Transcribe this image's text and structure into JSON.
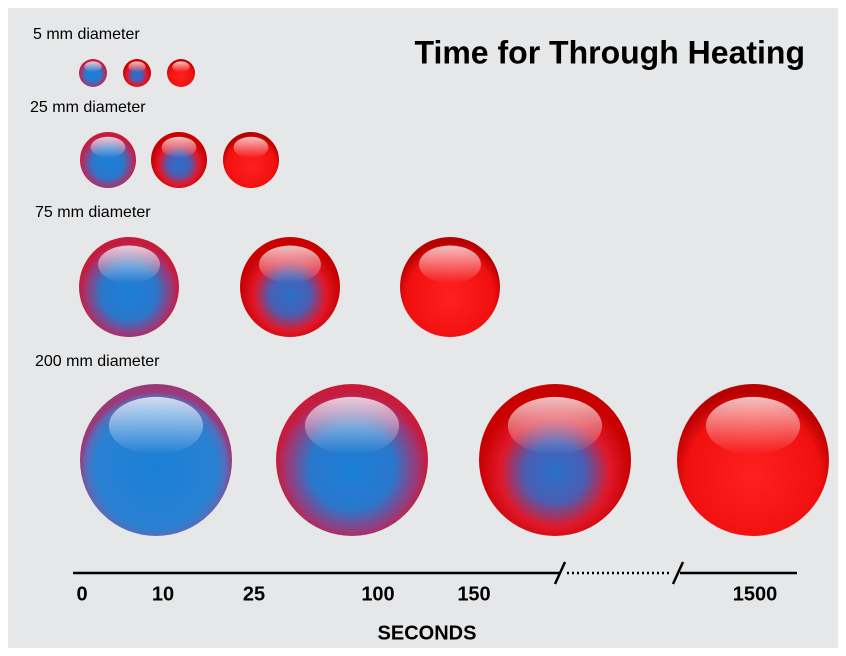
{
  "title": "Time for Through Heating",
  "rows": [
    {
      "label": "5 mm diameter"
    },
    {
      "label": "25 mm diameter"
    },
    {
      "label": "75 mm diameter"
    },
    {
      "label": "200 mm diameter"
    }
  ],
  "axis": {
    "ticks": [
      "0",
      "10",
      "25",
      "100",
      "150",
      "1500"
    ],
    "label": "SECONDS"
  }
}
